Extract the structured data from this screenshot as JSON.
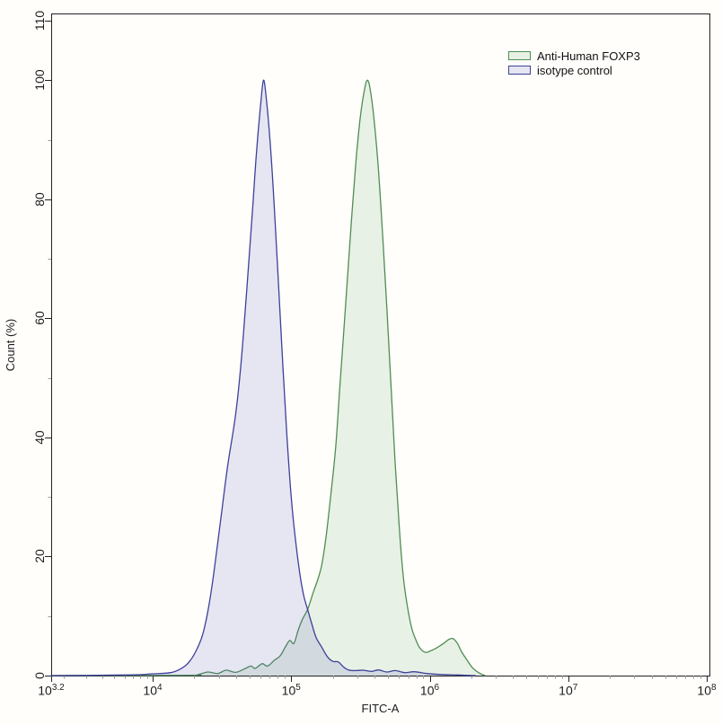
{
  "chart_data": {
    "type": "area",
    "subtype": "flow-cytometry-overlay-histogram",
    "title": "",
    "xlabel": "FITC-A",
    "ylabel": "Count (%)",
    "x_scale": "log",
    "xlim_log10": [
      3.2,
      8
    ],
    "ylim": [
      0,
      110
    ],
    "grid": false,
    "legend_position": "top-right-inside",
    "x_ticks": [
      {
        "base": "10",
        "exp": "3.2",
        "log": 3.2
      },
      {
        "base": "10",
        "exp": "4",
        "log": 4
      },
      {
        "base": "10",
        "exp": "5",
        "log": 5
      },
      {
        "base": "10",
        "exp": "6",
        "log": 6
      },
      {
        "base": "10",
        "exp": "7",
        "log": 7
      },
      {
        "base": "10",
        "exp": "8",
        "log": 8
      }
    ],
    "y_ticks": [
      0,
      20,
      40,
      60,
      80,
      100,
      110
    ],
    "y_minor_ticks": [
      10,
      30,
      50,
      70,
      90
    ],
    "colors": {
      "axis": "#222222",
      "minor_tick": "#9a9a9a",
      "text": "#1c1c1c",
      "background": "#fffefb"
    },
    "series": [
      {
        "name": "Anti-Human FOXP3",
        "stroke": "#4f8d53",
        "fill": "rgba(110,175,120,0.16)",
        "peak": {
          "log10_fitc": 5.55,
          "percent": 100
        },
        "points": [
          [
            3.2,
            0
          ],
          [
            4.25,
            0.05
          ],
          [
            4.33,
            0.2
          ],
          [
            4.4,
            0.6
          ],
          [
            4.47,
            0.35
          ],
          [
            4.53,
            0.9
          ],
          [
            4.6,
            0.55
          ],
          [
            4.66,
            1.1
          ],
          [
            4.71,
            1.6
          ],
          [
            4.74,
            1.2
          ],
          [
            4.79,
            2.0
          ],
          [
            4.83,
            1.6
          ],
          [
            4.88,
            2.6
          ],
          [
            4.92,
            3.3
          ],
          [
            4.96,
            4.9
          ],
          [
            4.99,
            5.9
          ],
          [
            5.02,
            5.4
          ],
          [
            5.05,
            7.6
          ],
          [
            5.08,
            9.4
          ],
          [
            5.12,
            11.2
          ],
          [
            5.16,
            14
          ],
          [
            5.19,
            16
          ],
          [
            5.22,
            18.5
          ],
          [
            5.25,
            23
          ],
          [
            5.28,
            29
          ],
          [
            5.32,
            38
          ],
          [
            5.35,
            48
          ],
          [
            5.38,
            58
          ],
          [
            5.41,
            68
          ],
          [
            5.44,
            78
          ],
          [
            5.47,
            87
          ],
          [
            5.5,
            94
          ],
          [
            5.53,
            98.5
          ],
          [
            5.55,
            100
          ],
          [
            5.57,
            98.5
          ],
          [
            5.6,
            93
          ],
          [
            5.63,
            85
          ],
          [
            5.66,
            74
          ],
          [
            5.69,
            62
          ],
          [
            5.72,
            49
          ],
          [
            5.75,
            36
          ],
          [
            5.78,
            25
          ],
          [
            5.81,
            16.5
          ],
          [
            5.84,
            11.5
          ],
          [
            5.87,
            8
          ],
          [
            5.9,
            6
          ],
          [
            5.93,
            4.6
          ],
          [
            5.97,
            3.9
          ],
          [
            6.02,
            4.3
          ],
          [
            6.06,
            4.8
          ],
          [
            6.1,
            5.4
          ],
          [
            6.14,
            6.1
          ],
          [
            6.17,
            6.2
          ],
          [
            6.2,
            5.4
          ],
          [
            6.23,
            4.0
          ],
          [
            6.27,
            2.6
          ],
          [
            6.31,
            1.3
          ],
          [
            6.36,
            0.4
          ],
          [
            6.4,
            0
          ]
        ]
      },
      {
        "name": "isotype control",
        "stroke": "#3c4199",
        "fill": "rgba(85,90,195,0.15)",
        "peak": {
          "log10_fitc": 4.8,
          "percent": 100
        },
        "points": [
          [
            3.2,
            0
          ],
          [
            3.8,
            0.1
          ],
          [
            4.0,
            0.3
          ],
          [
            4.13,
            0.5
          ],
          [
            4.2,
            1.1
          ],
          [
            4.26,
            2.2
          ],
          [
            4.31,
            4
          ],
          [
            4.36,
            6.8
          ],
          [
            4.4,
            11
          ],
          [
            4.44,
            17
          ],
          [
            4.49,
            26
          ],
          [
            4.54,
            35
          ],
          [
            4.6,
            44
          ],
          [
            4.64,
            53
          ],
          [
            4.68,
            65
          ],
          [
            4.72,
            78
          ],
          [
            4.75,
            88
          ],
          [
            4.78,
            96
          ],
          [
            4.8,
            100
          ],
          [
            4.82,
            97
          ],
          [
            4.85,
            89
          ],
          [
            4.88,
            78
          ],
          [
            4.91,
            65
          ],
          [
            4.94,
            52
          ],
          [
            4.97,
            40
          ],
          [
            5.0,
            30
          ],
          [
            5.03,
            23
          ],
          [
            5.06,
            17.5
          ],
          [
            5.09,
            13.5
          ],
          [
            5.12,
            11
          ],
          [
            5.15,
            8.6
          ],
          [
            5.18,
            6.4
          ],
          [
            5.22,
            4.8
          ],
          [
            5.26,
            3.2
          ],
          [
            5.3,
            2.4
          ],
          [
            5.34,
            2.3
          ],
          [
            5.38,
            1.4
          ],
          [
            5.42,
            0.9
          ],
          [
            5.47,
            0.85
          ],
          [
            5.52,
            0.9
          ],
          [
            5.58,
            0.7
          ],
          [
            5.63,
            0.95
          ],
          [
            5.69,
            0.6
          ],
          [
            5.75,
            0.85
          ],
          [
            5.82,
            0.5
          ],
          [
            5.89,
            0.65
          ],
          [
            5.98,
            0.35
          ],
          [
            6.07,
            0.2
          ],
          [
            6.2,
            0.1
          ],
          [
            6.33,
            0
          ]
        ]
      }
    ]
  }
}
